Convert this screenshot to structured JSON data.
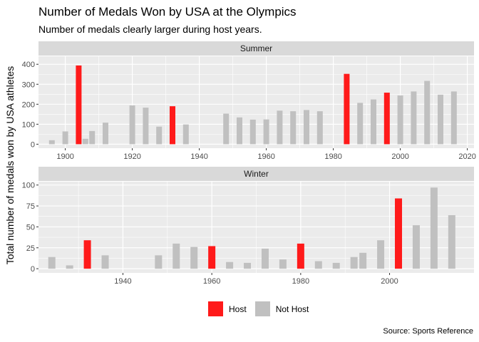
{
  "title": "Number of Medals Won by USA at the Olympics",
  "subtitle": "Number of medals clearly larger during host years.",
  "caption": "Source: Sports Reference",
  "colors": {
    "host": "#ff1a1a",
    "not_host": "#c0c0c0",
    "panel_bg": "#ebebeb",
    "strip_bg": "#d9d9d9",
    "grid": "#ffffff"
  },
  "legend": {
    "items": [
      {
        "label": "Host",
        "color": "#ff1a1a"
      },
      {
        "label": "Not Host",
        "color": "#c0c0c0"
      }
    ],
    "position": "bottom"
  },
  "chart_data": {
    "type": "bar",
    "ylabel": "Total number of medals won by USA athletes",
    "panels": [
      {
        "label": "Summer",
        "xlim": [
          1892,
          2022
        ],
        "ylim": [
          -20,
          440
        ],
        "x_ticks": [
          "1900",
          "1920",
          "1940",
          "1960",
          "1980",
          "2000",
          "2020"
        ],
        "y_ticks": [
          "0",
          "100",
          "200",
          "300",
          "400"
        ],
        "bars": [
          {
            "year": 1896,
            "medals": 20,
            "host": false
          },
          {
            "year": 1900,
            "medals": 64,
            "host": false
          },
          {
            "year": 1904,
            "medals": 394,
            "host": true
          },
          {
            "year": 1906,
            "medals": 27,
            "host": false
          },
          {
            "year": 1908,
            "medals": 66,
            "host": false
          },
          {
            "year": 1912,
            "medals": 108,
            "host": false
          },
          {
            "year": 1920,
            "medals": 194,
            "host": false
          },
          {
            "year": 1924,
            "medals": 183,
            "host": false
          },
          {
            "year": 1928,
            "medals": 88,
            "host": false
          },
          {
            "year": 1932,
            "medals": 190,
            "host": true
          },
          {
            "year": 1936,
            "medals": 99,
            "host": false
          },
          {
            "year": 1948,
            "medals": 153,
            "host": false
          },
          {
            "year": 1952,
            "medals": 134,
            "host": false
          },
          {
            "year": 1956,
            "medals": 123,
            "host": false
          },
          {
            "year": 1960,
            "medals": 124,
            "host": false
          },
          {
            "year": 1964,
            "medals": 168,
            "host": false
          },
          {
            "year": 1968,
            "medals": 165,
            "host": false
          },
          {
            "year": 1972,
            "medals": 171,
            "host": false
          },
          {
            "year": 1976,
            "medals": 165,
            "host": false
          },
          {
            "year": 1984,
            "medals": 352,
            "host": true
          },
          {
            "year": 1988,
            "medals": 207,
            "host": false
          },
          {
            "year": 1992,
            "medals": 224,
            "host": false
          },
          {
            "year": 1996,
            "medals": 258,
            "host": true
          },
          {
            "year": 2000,
            "medals": 244,
            "host": false
          },
          {
            "year": 2004,
            "medals": 264,
            "host": false
          },
          {
            "year": 2008,
            "medals": 317,
            "host": false
          },
          {
            "year": 2012,
            "medals": 248,
            "host": false
          },
          {
            "year": 2016,
            "medals": 264,
            "host": false
          }
        ]
      },
      {
        "label": "Winter",
        "xlim": [
          1921,
          2019
        ],
        "ylim": [
          -5,
          104
        ],
        "x_ticks": [
          "1940",
          "1960",
          "1980",
          "2000"
        ],
        "y_ticks": [
          "0",
          "25",
          "50",
          "75",
          "100"
        ],
        "bars": [
          {
            "year": 1924,
            "medals": 14,
            "host": false
          },
          {
            "year": 1928,
            "medals": 4,
            "host": false
          },
          {
            "year": 1932,
            "medals": 34,
            "host": true
          },
          {
            "year": 1936,
            "medals": 16,
            "host": false
          },
          {
            "year": 1948,
            "medals": 16,
            "host": false
          },
          {
            "year": 1952,
            "medals": 30,
            "host": false
          },
          {
            "year": 1956,
            "medals": 26,
            "host": false
          },
          {
            "year": 1960,
            "medals": 27,
            "host": true
          },
          {
            "year": 1964,
            "medals": 8,
            "host": false
          },
          {
            "year": 1968,
            "medals": 7,
            "host": false
          },
          {
            "year": 1972,
            "medals": 24,
            "host": false
          },
          {
            "year": 1976,
            "medals": 11,
            "host": false
          },
          {
            "year": 1980,
            "medals": 30,
            "host": true
          },
          {
            "year": 1984,
            "medals": 9,
            "host": false
          },
          {
            "year": 1988,
            "medals": 7,
            "host": false
          },
          {
            "year": 1992,
            "medals": 14,
            "host": false
          },
          {
            "year": 1994,
            "medals": 19,
            "host": false
          },
          {
            "year": 1998,
            "medals": 34,
            "host": false
          },
          {
            "year": 2002,
            "medals": 84,
            "host": true
          },
          {
            "year": 2006,
            "medals": 52,
            "host": false
          },
          {
            "year": 2010,
            "medals": 97,
            "host": false
          },
          {
            "year": 2014,
            "medals": 64,
            "host": false
          }
        ]
      }
    ]
  }
}
